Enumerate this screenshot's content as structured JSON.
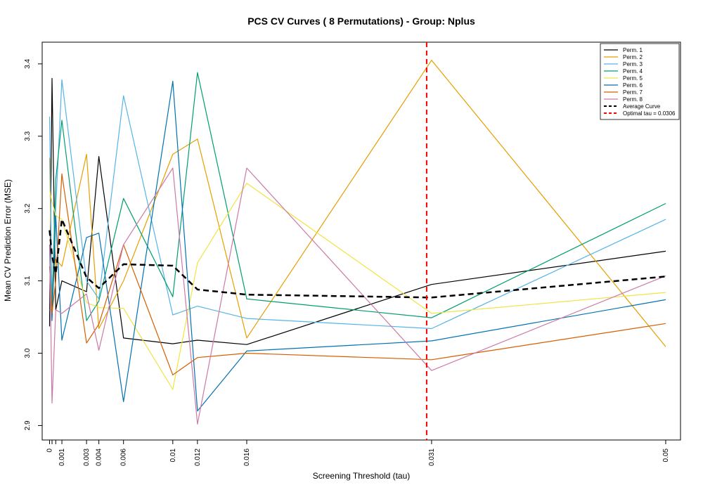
{
  "chart_data": {
    "type": "line",
    "title": "PCS CV Curves ( 8  Permutations) - Group: Nplus",
    "xlabel": "Screening Threshold (tau)",
    "ylabel": "Mean CV Prediction Error (MSE)",
    "xlim": [
      -0.0006,
      0.0512
    ],
    "ylim": [
      2.88,
      3.43
    ],
    "x_ticks": [
      0,
      0.0002,
      0.0005,
      0.001,
      0.003,
      0.004,
      0.006,
      0.01,
      0.012,
      0.016,
      0.031,
      0.05
    ],
    "x_tick_labels": [
      "0",
      "",
      "",
      "0.001",
      "0.003",
      "0.004",
      "0.006",
      "0.01",
      "0.012",
      "0.016",
      "0.031",
      "0.05"
    ],
    "y_ticks": [
      2.9,
      3.0,
      3.1,
      3.2,
      3.3,
      3.4
    ],
    "y_tick_labels": [
      "2.9",
      "3.0",
      "3.1",
      "3.2",
      "3.3",
      "3.4"
    ],
    "x": [
      0,
      0.0002,
      0.0005,
      0.001,
      0.003,
      0.004,
      0.006,
      0.01,
      0.012,
      0.016,
      0.031,
      0.05
    ],
    "series": [
      {
        "name": "Perm. 1",
        "color": "#000000",
        "style": "solid",
        "values": [
          3.037,
          3.38,
          3.06,
          3.1,
          3.085,
          3.272,
          3.021,
          3.013,
          3.018,
          3.012,
          3.095,
          3.141
        ]
      },
      {
        "name": "Perm. 2",
        "color": "#E69F00",
        "style": "solid",
        "values": [
          3.27,
          3.08,
          3.13,
          3.12,
          3.275,
          3.034,
          3.1,
          3.275,
          3.296,
          3.021,
          3.405,
          3.009
        ]
      },
      {
        "name": "Perm. 3",
        "color": "#56B4E9",
        "style": "solid",
        "values": [
          3.327,
          3.07,
          3.2,
          3.378,
          3.1,
          3.075,
          3.356,
          3.053,
          3.065,
          3.048,
          3.034,
          3.185
        ]
      },
      {
        "name": "Perm. 4",
        "color": "#009E73",
        "style": "solid",
        "values": [
          3.06,
          3.06,
          3.24,
          3.322,
          3.045,
          3.072,
          3.214,
          3.078,
          3.388,
          3.075,
          3.049,
          3.207
        ]
      },
      {
        "name": "Perm. 5",
        "color": "#F0E442",
        "style": "solid",
        "values": [
          3.225,
          3.21,
          3.19,
          3.185,
          3.07,
          3.063,
          3.062,
          2.95,
          3.125,
          3.235,
          3.055,
          3.084
        ]
      },
      {
        "name": "Perm. 6",
        "color": "#0072B2",
        "style": "solid",
        "values": [
          3.15,
          3.045,
          3.19,
          3.018,
          3.16,
          3.166,
          2.933,
          3.376,
          2.92,
          3.003,
          3.017,
          3.074
        ]
      },
      {
        "name": "Perm. 7",
        "color": "#D55E00",
        "style": "solid",
        "values": [
          3.12,
          3.055,
          3.1,
          3.248,
          3.014,
          3.04,
          3.15,
          2.97,
          2.994,
          3.0,
          2.991,
          3.041
        ]
      },
      {
        "name": "Perm. 8",
        "color": "#CC79A7",
        "style": "solid",
        "values": [
          3.15,
          2.931,
          3.06,
          3.055,
          3.082,
          3.004,
          3.15,
          3.256,
          2.902,
          3.256,
          2.976,
          3.107
        ]
      },
      {
        "name": "Average Curve",
        "color": "#000000",
        "style": "dashed",
        "values": [
          3.17,
          3.135,
          3.11,
          3.185,
          3.105,
          3.09,
          3.123,
          3.121,
          3.088,
          3.081,
          3.077,
          3.106
        ]
      }
    ],
    "vline": {
      "x": 0.0306,
      "color": "#FF0000",
      "style": "dashed",
      "label": "Optimal tau = 0.0306"
    },
    "legend_position": "top-right",
    "grid": false
  }
}
